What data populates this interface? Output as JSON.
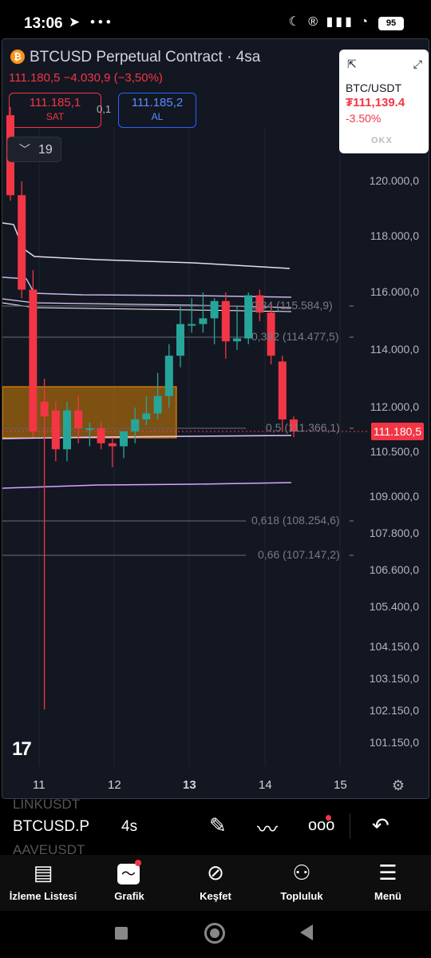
{
  "status_bar": {
    "time": "13:06",
    "battery": "95"
  },
  "header": {
    "title": "BTCUSD Perpetual Contract · 4sa",
    "ohlc_line": "111.180,5  −4.030,9 (−3,50%)",
    "sell_price": "111.185,1",
    "sell_label": "SAT",
    "spread": "0,1",
    "buy_price": "111.185,2",
    "buy_label": "AL",
    "indicator_count": "19"
  },
  "widget": {
    "pair": "BTC/USDT",
    "price": "₮111,139.4",
    "change": "-3.50%",
    "logo": "OKX"
  },
  "price_axis": [
    "120.000,0",
    "118.000,0",
    "116.000,0",
    "114.000,0",
    "112.000,0",
    "110.500,0",
    "109.000,0",
    "107.800,0",
    "106.600,0",
    "105.400,0",
    "104.150,0",
    "103.150,0",
    "102.150,0",
    "101.150,0"
  ],
  "current_price": "111.180,5",
  "time_axis": [
    "11",
    "12",
    "13",
    "14",
    "15"
  ],
  "fib_levels": [
    {
      "label": "0,34 (115.584,9)"
    },
    {
      "label": "0,382 (114.477,5)"
    },
    {
      "label": "0,5 (111.366,1)"
    },
    {
      "label": "0,618 (108.254,6)"
    },
    {
      "label": "0,66 (107.147,2)"
    }
  ],
  "chart_data": {
    "type": "candlestick",
    "symbol": "BTCUSD",
    "interval": "4sa",
    "candles": [
      {
        "o": 122400,
        "h": 122700,
        "l": 119300,
        "c": 119500
      },
      {
        "o": 119500,
        "h": 120000,
        "l": 115800,
        "c": 116100
      },
      {
        "o": 116100,
        "h": 116800,
        "l": 111000,
        "c": 111200
      },
      {
        "o": 112200,
        "h": 113000,
        "l": 102200,
        "c": 111700
      },
      {
        "o": 111900,
        "h": 112200,
        "l": 110200,
        "c": 110600
      },
      {
        "o": 110600,
        "h": 112200,
        "l": 110200,
        "c": 111900
      },
      {
        "o": 111900,
        "h": 112400,
        "l": 110800,
        "c": 111300
      },
      {
        "o": 111300,
        "h": 111500,
        "l": 110700,
        "c": 111300
      },
      {
        "o": 111300,
        "h": 111500,
        "l": 110600,
        "c": 110800
      },
      {
        "o": 110800,
        "h": 111000,
        "l": 110000,
        "c": 110700
      },
      {
        "o": 110700,
        "h": 111200,
        "l": 110300,
        "c": 111200
      },
      {
        "o": 111200,
        "h": 112000,
        "l": 110800,
        "c": 111600
      },
      {
        "o": 111600,
        "h": 112400,
        "l": 111400,
        "c": 111800
      },
      {
        "o": 111800,
        "h": 113200,
        "l": 111600,
        "c": 112400
      },
      {
        "o": 112400,
        "h": 114200,
        "l": 112000,
        "c": 113800
      },
      {
        "o": 113800,
        "h": 115500,
        "l": 113400,
        "c": 114900
      },
      {
        "o": 114900,
        "h": 115800,
        "l": 114600,
        "c": 114900
      },
      {
        "o": 114900,
        "h": 116000,
        "l": 114600,
        "c": 115100
      },
      {
        "o": 115100,
        "h": 115800,
        "l": 114200,
        "c": 115700
      },
      {
        "o": 115700,
        "h": 116000,
        "l": 113700,
        "c": 114300
      },
      {
        "o": 114300,
        "h": 115500,
        "l": 114000,
        "c": 114400
      },
      {
        "o": 114400,
        "h": 116000,
        "l": 114200,
        "c": 115900
      },
      {
        "o": 115900,
        "h": 116100,
        "l": 115000,
        "c": 115300
      },
      {
        "o": 115300,
        "h": 115600,
        "l": 113500,
        "c": 113800
      },
      {
        "o": 113600,
        "h": 113800,
        "l": 111200,
        "c": 111600
      },
      {
        "o": 111600,
        "h": 111700,
        "l": 111000,
        "c": 111200
      }
    ]
  },
  "toolbar": {
    "symbol": "BTCUSD.P",
    "interval": "4s",
    "ghost_above": "LINKUSDT",
    "ghost_below": "AAVEUSDT"
  },
  "bottom_nav": [
    {
      "label": "İzleme Listesi"
    },
    {
      "label": "Grafik"
    },
    {
      "label": "Keşfet"
    },
    {
      "label": "Topluluk"
    },
    {
      "label": "Menü"
    }
  ]
}
